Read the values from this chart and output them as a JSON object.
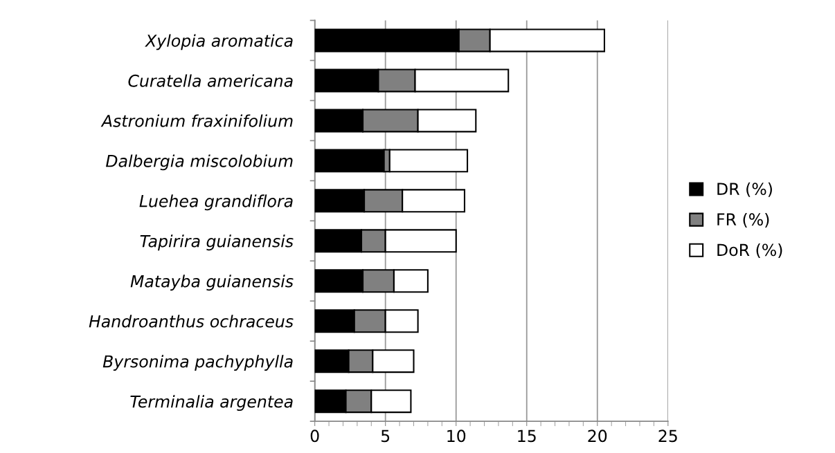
{
  "chart_data": {
    "type": "bar",
    "orientation": "horizontal",
    "stacked": true,
    "categories": [
      "Xylopia aromatica",
      "Curatella americana",
      "Astronium fraxinifolium",
      "Dalbergia miscolobium",
      "Luehea grandiflora",
      "Tapirira guianensis",
      "Matayba guianensis",
      "Handroanthus ochraceus",
      "Byrsonima pachyphylla",
      "Terminalia argentea"
    ],
    "series": [
      {
        "name": "DR (%)",
        "color": "#000000",
        "values": [
          10.2,
          4.5,
          3.4,
          4.9,
          3.5,
          3.3,
          3.4,
          2.8,
          2.4,
          2.2
        ]
      },
      {
        "name": "FR (%)",
        "color": "#808080",
        "values": [
          2.2,
          2.6,
          3.9,
          0.4,
          2.7,
          1.7,
          2.2,
          2.2,
          1.7,
          1.8
        ]
      },
      {
        "name": "DoR (%)",
        "color": "#ffffff",
        "values": [
          8.1,
          6.6,
          4.1,
          5.5,
          4.4,
          5.0,
          2.4,
          2.3,
          2.9,
          2.8
        ]
      }
    ],
    "xlim": [
      0,
      25
    ],
    "xticks": [
      0,
      5,
      10,
      15,
      20,
      25
    ],
    "grid": "x",
    "legend": "right"
  }
}
